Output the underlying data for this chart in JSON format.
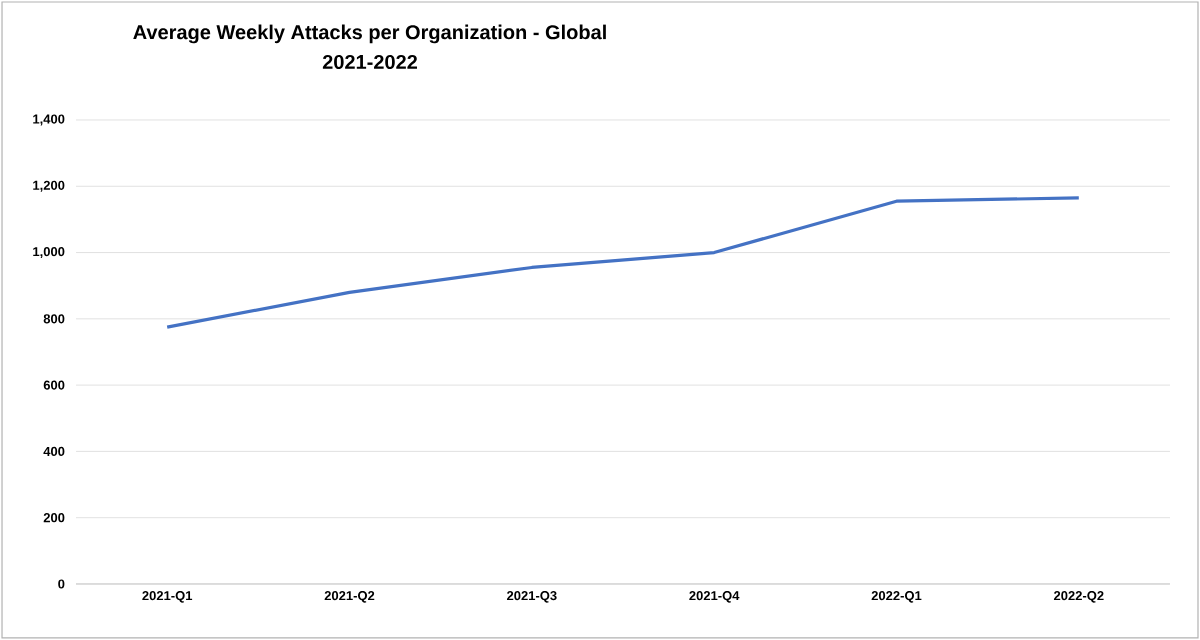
{
  "chart_data": {
    "type": "line",
    "title": "Average Weekly Attacks per Organization - Global",
    "subtitle": "2021-2022",
    "categories": [
      "2021-Q1",
      "2021-Q2",
      "2021-Q3",
      "2021-Q4",
      "2022-Q1",
      "2022-Q2"
    ],
    "series": [
      {
        "color": "#4472c4",
        "values": [
          775,
          880,
          955,
          1000,
          1155,
          1165
        ]
      }
    ],
    "ylim": [
      0,
      1400
    ],
    "yticks": [
      0,
      200,
      400,
      600,
      800,
      {
        "value": 1000,
        "label": "1,000"
      },
      {
        "value": 1200,
        "label": "1,200"
      },
      {
        "value": 1400,
        "label": "1,400"
      }
    ],
    "grid": "y",
    "marker": "none",
    "line_style": "solid"
  }
}
